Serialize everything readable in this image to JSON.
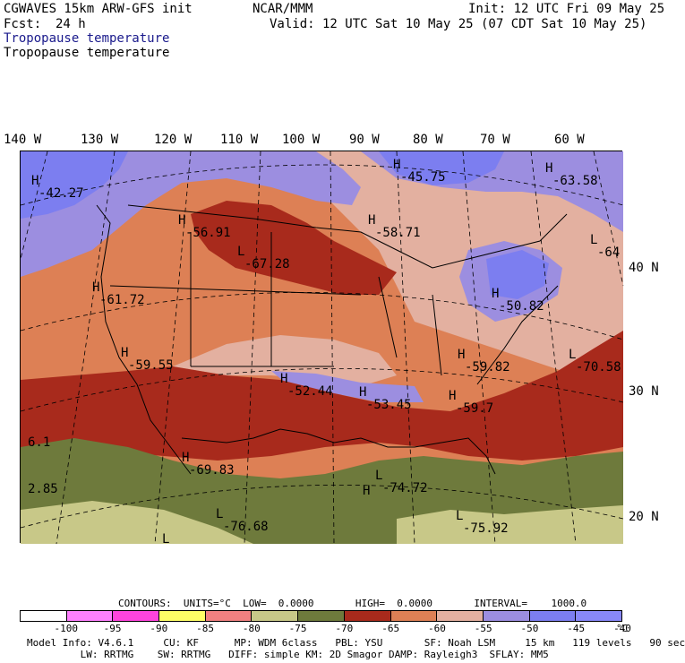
{
  "header": {
    "model_title": "CGWAVES 15km ARW-GFS init",
    "center": "NCAR/MMM",
    "fcst_label": "Fcst:",
    "fcst_value": "24 h",
    "init": "Init: 12 UTC Fri 09 May 25",
    "valid": "Valid: 12 UTC Sat 10 May 25 (07 CDT Sat 10 May 25)",
    "field_name_colored": "Tropopause temperature",
    "field_name": "Tropopause temperature",
    "field_color": "#1a1a8c"
  },
  "map": {
    "lon_labels": [
      "140 W",
      "130 W",
      "120 W",
      "110 W",
      "100 W",
      "90 W",
      "80 W",
      "70 W",
      "60 W"
    ],
    "lat_labels": [
      "40 N",
      "30 N",
      "20 N"
    ],
    "highs_lows": [
      {
        "type": "H",
        "value": "-42.27"
      },
      {
        "type": "H",
        "value": "-45.75"
      },
      {
        "type": "H",
        "value": "-63.58"
      },
      {
        "type": "H",
        "value": "-56.91"
      },
      {
        "type": "H",
        "value": "-58.71"
      },
      {
        "type": "L",
        "value": "-67.28"
      },
      {
        "type": "L",
        "value": "-64"
      },
      {
        "type": "H",
        "value": "-61.72"
      },
      {
        "type": "H",
        "value": "-50.82"
      },
      {
        "type": "H",
        "value": "-59.55"
      },
      {
        "type": "H",
        "value": "-59.82"
      },
      {
        "type": "L",
        "value": "-70.58"
      },
      {
        "type": "H",
        "value": "-52.44"
      },
      {
        "type": "H",
        "value": "-53.45"
      },
      {
        "type": "H",
        "value": "-59.7"
      },
      {
        "type": "",
        "value": "6.1"
      },
      {
        "type": "H",
        "value": "-69.83"
      },
      {
        "type": "L",
        "value": "-74.72"
      },
      {
        "type": "",
        "value": "2.85"
      },
      {
        "type": "L",
        "value": "-76.68"
      },
      {
        "type": "L",
        "value": "-75.92"
      },
      {
        "type": "H",
        "value": ""
      },
      {
        "type": "L",
        "value": ""
      }
    ]
  },
  "legend": {
    "contours_line": "CONTOURS:  UNITS=°C  LOW=  0.0000       HIGH=  0.0000       INTERVAL=    1000.0",
    "bins": [
      {
        "color": "#ffffff"
      },
      {
        "color": "#ff80ff"
      },
      {
        "color": "#ff44dd"
      },
      {
        "color": "#ffff66"
      },
      {
        "color": "#f08080"
      },
      {
        "color": "#c8c888"
      },
      {
        "color": "#6e7a3c"
      },
      {
        "color": "#a82a1c"
      },
      {
        "color": "#dd8055"
      },
      {
        "color": "#e3b0a0"
      },
      {
        "color": "#9c8ee0"
      },
      {
        "color": "#7c7ef0"
      },
      {
        "color": "#8888f8"
      }
    ],
    "ticks": [
      "-100",
      "-95",
      "-90",
      "-85",
      "-80",
      "-75",
      "-70",
      "-65",
      "-60",
      "-55",
      "-50",
      "-45",
      "-40"
    ],
    "unit": "°C"
  },
  "footer": {
    "line1": "Model Info: V4.6.1     CU: KF      MP: WDM 6class   PBL: YSU       SF: Noah LSM     15 km   119 levels   90 sec",
    "line2": "         LW: RRTMG    SW: RRTMG   DIFF: simple KM: 2D Smagor DAMP: Rayleigh3  SFLAY: MM5"
  }
}
